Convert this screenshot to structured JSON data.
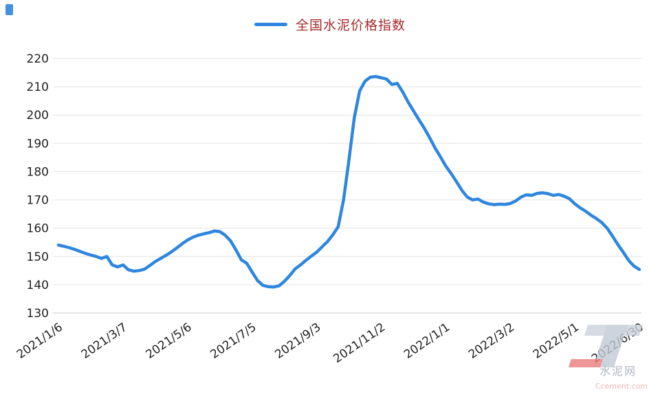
{
  "page": {
    "background": "#ffffff",
    "accent": "#2e86de"
  },
  "legend": {
    "label": "全国水泥价格指数",
    "line_color": "#2e86de",
    "text_color": "#a52a2a"
  },
  "watermark": {
    "name_cn": "水泥网",
    "name_en": "Ccement.com"
  },
  "chart_data": {
    "type": "line",
    "title": "全国水泥价格指数",
    "grid": "horizontal",
    "legend_position": "top-center",
    "ylim": [
      130,
      220
    ],
    "y_ticks": [
      130,
      140,
      150,
      160,
      170,
      180,
      190,
      200,
      210,
      220
    ],
    "x_tick_labels": [
      "2021/1/6",
      "2021/3/7",
      "2021/5/6",
      "2021/7/5",
      "2021/9/3",
      "2021/11/2",
      "2022/1/1",
      "2022/3/2",
      "2022/5/1",
      "2022/6/30"
    ],
    "x_tick_indices": [
      0,
      12,
      24,
      36,
      48,
      60,
      72,
      84,
      96,
      108
    ],
    "grid_color": "#e2e2e2",
    "axis_color": "#c9c9c9",
    "tick_color": "#1f1f1f",
    "series": [
      {
        "name": "全国水泥价格指数",
        "color": "#2e86de",
        "values": [
          154,
          153.6,
          153.1,
          152.5,
          151.8,
          151.1,
          150.5,
          150,
          149.3,
          150,
          147,
          146.3,
          147,
          145.3,
          144.8,
          145,
          145.5,
          146.8,
          148.2,
          149.3,
          150.4,
          151.6,
          153,
          154.5,
          155.8,
          156.8,
          157.5,
          158,
          158.4,
          159,
          158.8,
          157.5,
          155.5,
          152.3,
          148.8,
          147.6,
          144.5,
          141.5,
          139.8,
          139.3,
          139.2,
          139.6,
          141.2,
          143.2,
          145.6,
          147,
          148.6,
          150.1,
          151.5,
          153.4,
          155.2,
          157.6,
          160.5,
          170,
          184,
          199,
          208.5,
          212,
          213.4,
          213.6,
          213.2,
          212.7,
          210.8,
          211.2,
          208.2,
          204.6,
          201.5,
          198.4,
          195.4,
          192,
          188.4,
          185.3,
          182,
          179.3,
          176.4,
          173.4,
          171,
          170,
          170.3,
          169.2,
          168.6,
          168.3,
          168.5,
          168.4,
          168.7,
          169.6,
          171,
          171.8,
          171.6,
          172.3,
          172.5,
          172.2,
          171.6,
          171.9,
          171.3,
          170.4,
          168.6,
          167.2,
          166,
          164.6,
          163.4,
          162,
          160,
          157.2,
          154.2,
          151.5,
          148.6,
          146.6,
          145.4
        ]
      }
    ]
  }
}
